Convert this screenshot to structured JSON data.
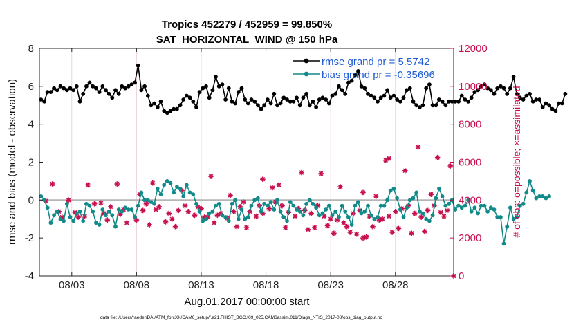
{
  "chart_data": {
    "type": "line",
    "title": [
      "Tropics 452279 / 452959 = 99.850%",
      "SAT_HORIZONTAL_WIND @ 150 hPa"
    ],
    "xlabel": "Aug.01,2017 00:00:00 start",
    "ylabel_left": "rmse and bias (model - observation)",
    "ylabel_right": "# of obs: o=possible; ×=assimilated",
    "ylim_left": [
      -4,
      8
    ],
    "yticks_left": [
      "-4",
      "-2",
      "0",
      "2",
      "4",
      "6",
      "8"
    ],
    "ylim_right": [
      0,
      12000
    ],
    "yticks_right": [
      "0",
      "2000",
      "4000",
      "6000",
      "8000",
      "10000",
      "12000"
    ],
    "xlim_days": [
      0.5,
      32.5
    ],
    "xtick_days": [
      3,
      8,
      13,
      18,
      23,
      28
    ],
    "xtick_labels": [
      "08/03",
      "08/08",
      "08/13",
      "08/18",
      "08/23",
      "08/28"
    ],
    "legend": [
      "rmse grand pr = 5.5742",
      "bias grand pr = -0.35696"
    ],
    "legend_position": "top-right",
    "footnote": "data file: /Users/raeder/DAI/ATM_forcXX/CAM6_setup/f.e21.FHIST_BGC.f09_025.CAM6assim.011/Diags_NTrS_2017-08/obs_diag_output.nc",
    "x_step_days": 0.25,
    "x_start_day": 0.625,
    "series": [
      {
        "name": "rmse",
        "color": "#000000",
        "values": [
          5.3,
          5.2,
          5.7,
          5.7,
          5.9,
          5.8,
          6.0,
          5.9,
          5.8,
          5.9,
          5.8,
          6.0,
          5.2,
          5.6,
          6.0,
          6.2,
          6.0,
          5.9,
          5.7,
          6.0,
          5.8,
          5.6,
          5.4,
          5.8,
          5.6,
          6.0,
          5.9,
          6.0,
          6.1,
          6.2,
          7.1,
          5.8,
          6.0,
          5.5,
          5.0,
          5.1,
          4.9,
          5.2,
          4.7,
          4.6,
          4.7,
          4.8,
          4.8,
          5.0,
          5.3,
          5.5,
          5.4,
          5.2,
          4.9,
          5.7,
          5.9,
          6.0,
          5.4,
          5.8,
          6.5,
          6.0,
          6.1,
          5.3,
          5.9,
          5.2,
          5.1,
          5.7,
          5.9,
          5.3,
          5.1,
          5.3,
          5.2,
          5.0,
          4.8,
          5.0,
          5.3,
          5.1,
          5.6,
          5.0,
          5.1,
          5.4,
          5.3,
          5.2,
          5.2,
          5.4,
          5.0,
          5.4,
          5.6,
          5.0,
          5.2,
          4.9,
          5.3,
          5.4,
          5.3,
          5.1,
          5.5,
          5.6,
          6.0,
          5.8,
          5.6,
          6.2,
          6.3,
          6.6,
          6.8,
          6.0,
          5.9,
          5.6,
          5.5,
          5.4,
          5.2,
          5.4,
          5.5,
          5.8,
          5.4,
          5.5,
          5.3,
          5.2,
          5.4,
          5.8,
          5.9,
          5.2,
          5.0,
          4.9,
          5.0,
          5.9,
          6.1,
          5.0,
          5.0,
          5.3,
          5.2,
          5.0,
          5.2,
          5.2,
          5.2,
          5.2,
          5.5,
          5.3,
          5.2,
          5.4,
          5.7,
          5.8,
          6.0,
          6.1,
          5.9,
          5.8,
          5.6,
          5.9,
          6.0,
          5.9,
          5.6,
          5.9,
          6.5,
          5.6,
          5.4,
          5.3,
          5.5,
          5.6,
          5.2,
          5.3,
          5.3,
          4.9,
          5.1,
          5.0,
          4.8,
          4.7,
          5.1,
          5.1,
          5.6
        ]
      },
      {
        "name": "bias",
        "color": "#138a8a",
        "values": [
          0.2,
          0.0,
          -0.4,
          -1.2,
          -0.8,
          -0.6,
          -1.0,
          -1.1,
          -0.2,
          -0.9,
          -1.1,
          -0.7,
          -0.6,
          -1.1,
          -0.2,
          -0.3,
          -0.6,
          -1.2,
          -1.3,
          -0.5,
          -0.8,
          -0.6,
          -0.8,
          -1.4,
          -0.5,
          -0.6,
          -0.4,
          -0.5,
          -0.5,
          -0.9,
          -0.3,
          0.4,
          0.0,
          0.0,
          -0.1,
          -0.2,
          0.6,
          0.3,
          0.8,
          1.0,
          0.9,
          0.4,
          0.7,
          0.6,
          0.2,
          0.8,
          0.4,
          0.3,
          -0.2,
          -0.6,
          -1.1,
          -1.0,
          -0.7,
          -0.6,
          -0.3,
          -0.2,
          -0.8,
          -0.9,
          -1.1,
          -0.2,
          0.0,
          -1.0,
          -0.5,
          -1.0,
          -0.9,
          -0.3,
          0.0,
          0.1,
          -0.6,
          -0.2,
          -0.3,
          -0.1,
          -0.5,
          0.0,
          -0.6,
          -0.9,
          -1.1,
          -0.1,
          -0.3,
          -0.5,
          -0.6,
          -0.8,
          -0.2,
          0.0,
          -0.2,
          -0.4,
          -0.8,
          -0.7,
          -0.5,
          -0.3,
          -0.8,
          -0.6,
          -0.9,
          -0.3,
          -0.6,
          -0.9,
          -1.3,
          -0.3,
          -0.1,
          -0.7,
          -0.6,
          -0.3,
          -0.8,
          -1.0,
          -0.9,
          -0.3,
          -0.3,
          0.0,
          0.5,
          0.6,
          0.1,
          -0.5,
          -0.9,
          -0.4,
          0.0,
          0.1,
          0.4,
          -0.6,
          -0.7,
          -1.0,
          -1.1,
          -0.8,
          0.1,
          0.6,
          0.2,
          -0.3,
          -0.2,
          0.0,
          -0.5,
          -0.3,
          -0.4,
          -0.3,
          0.0,
          -0.6,
          -0.4,
          -0.7,
          -0.3,
          -0.3,
          -0.6,
          -0.4,
          -0.5,
          -0.9,
          -0.9,
          -2.3,
          -1.4,
          -0.4,
          -1.0,
          -0.9,
          -0.3,
          -0.2,
          0.4,
          1.0,
          0.5,
          0.1,
          0.2,
          0.2,
          0.1,
          0.2
        ]
      }
    ],
    "obs_assimilated": {
      "color": "#c8104e",
      "points": [
        [
          1.0,
          3950
        ],
        [
          2.0,
          3400
        ],
        [
          3.25,
          3350
        ],
        [
          3.5,
          3100
        ],
        [
          4.0,
          3150
        ],
        [
          4.75,
          3800
        ],
        [
          5.25,
          3850
        ],
        [
          5.75,
          2950
        ],
        [
          6.0,
          3650
        ],
        [
          6.75,
          3250
        ],
        [
          7.0,
          3500
        ],
        [
          8.0,
          2950
        ],
        [
          8.5,
          3450
        ],
        [
          8.75,
          3800
        ],
        [
          9.5,
          3500
        ],
        [
          9.75,
          3650
        ],
        [
          10.5,
          3300
        ],
        [
          10.75,
          3000
        ],
        [
          11.25,
          3450
        ],
        [
          11.75,
          3700
        ],
        [
          12.0,
          3400
        ],
        [
          12.5,
          3200
        ],
        [
          13.0,
          3550
        ],
        [
          13.5,
          3100
        ],
        [
          14.5,
          3300
        ],
        [
          15.0,
          3050
        ],
        [
          15.5,
          3400
        ],
        [
          16.0,
          3650
        ],
        [
          16.25,
          3900
        ],
        [
          16.75,
          3400
        ],
        [
          17.25,
          3150
        ],
        [
          17.75,
          3300
        ],
        [
          18.25,
          3550
        ],
        [
          18.75,
          3900
        ],
        [
          19.25,
          3700
        ],
        [
          19.75,
          3350
        ],
        [
          20.5,
          3550
        ],
        [
          21.0,
          3450
        ],
        [
          21.5,
          3300
        ],
        [
          22.0,
          3700
        ],
        [
          22.5,
          3150
        ],
        [
          23.0,
          3000
        ],
        [
          23.5,
          2950
        ],
        [
          24.0,
          2800
        ],
        [
          24.75,
          3300
        ],
        [
          25.25,
          3450
        ],
        [
          26.0,
          3150
        ],
        [
          26.75,
          2950
        ],
        [
          27.0,
          3000
        ],
        [
          27.5,
          3150
        ],
        [
          28.0,
          3400
        ],
        [
          28.5,
          3550
        ],
        [
          29.0,
          3700
        ],
        [
          29.5,
          3300
        ],
        [
          30.0,
          3100
        ],
        [
          30.5,
          3450
        ],
        [
          31.0,
          3700
        ],
        [
          31.5,
          3350
        ],
        [
          32.0,
          3450
        ],
        [
          32.5,
          0
        ],
        [
          1.5,
          4850
        ],
        [
          2.75,
          4000
        ],
        [
          4.25,
          4800
        ],
        [
          6.5,
          4850
        ],
        [
          8.25,
          4300
        ],
        [
          9.25,
          4900
        ],
        [
          11.5,
          4500
        ],
        [
          13.75,
          5250
        ],
        [
          15.25,
          4250
        ],
        [
          17.75,
          5100
        ],
        [
          18.5,
          4650
        ],
        [
          19.0,
          4800
        ],
        [
          20.75,
          5450
        ],
        [
          22.25,
          5400
        ],
        [
          23.75,
          4700
        ],
        [
          25.5,
          4400
        ],
        [
          26.5,
          4200
        ],
        [
          27.25,
          6100
        ],
        [
          27.5,
          6200
        ],
        [
          28.75,
          5550
        ],
        [
          29.75,
          6800
        ],
        [
          30.75,
          4300
        ],
        [
          31.25,
          6250
        ],
        [
          32.25,
          5800
        ],
        [
          2.25,
          3100
        ],
        [
          5.5,
          3300
        ],
        [
          7.25,
          2800
        ],
        [
          9.0,
          2700
        ],
        [
          10.25,
          2850
        ],
        [
          11.0,
          2600
        ],
        [
          12.75,
          3650
        ],
        [
          13.25,
          3100
        ],
        [
          14.0,
          2800
        ],
        [
          14.25,
          3200
        ],
        [
          15.75,
          2600
        ],
        [
          16.5,
          2550
        ],
        [
          17.5,
          3700
        ],
        [
          19.5,
          2550
        ],
        [
          20.25,
          3150
        ],
        [
          21.25,
          2450
        ],
        [
          21.75,
          2550
        ],
        [
          22.75,
          2650
        ],
        [
          23.25,
          2250
        ],
        [
          24.5,
          2300
        ],
        [
          25.0,
          2200
        ],
        [
          25.75,
          2050
        ],
        [
          26.25,
          2600
        ],
        [
          27.75,
          2300
        ],
        [
          29.25,
          2250
        ],
        [
          30.25,
          2350
        ],
        [
          31.75,
          3150
        ],
        [
          24.25,
          2600
        ],
        [
          25.5,
          2000
        ],
        [
          28.25,
          2500
        ]
      ]
    }
  }
}
